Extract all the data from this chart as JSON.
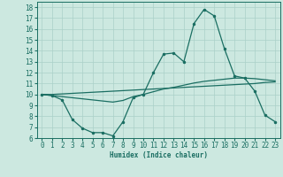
{
  "xlabel": "Humidex (Indice chaleur)",
  "background_color": "#cce8e0",
  "grid_color": "#aad0c8",
  "line_color": "#1a6e62",
  "xlim": [
    -0.5,
    23.5
  ],
  "ylim": [
    6,
    18.5
  ],
  "xticks": [
    0,
    1,
    2,
    3,
    4,
    5,
    6,
    7,
    8,
    9,
    10,
    11,
    12,
    13,
    14,
    15,
    16,
    17,
    18,
    19,
    20,
    21,
    22,
    23
  ],
  "yticks": [
    6,
    7,
    8,
    9,
    10,
    11,
    12,
    13,
    14,
    15,
    16,
    17,
    18
  ],
  "curve1_x": [
    0,
    1,
    2,
    3,
    4,
    5,
    6,
    7,
    8,
    9,
    10,
    11,
    12,
    13,
    14,
    15,
    16,
    17,
    18,
    19,
    20,
    21,
    22,
    23
  ],
  "curve1_y": [
    10.0,
    9.9,
    9.5,
    7.7,
    6.9,
    6.5,
    6.5,
    6.2,
    7.5,
    9.7,
    10.0,
    12.0,
    13.7,
    13.8,
    13.0,
    16.5,
    17.8,
    17.2,
    14.2,
    11.7,
    11.5,
    10.3,
    8.1,
    7.5
  ],
  "curve2_x": [
    0,
    1,
    2,
    3,
    4,
    5,
    6,
    7,
    8,
    9,
    10,
    11,
    12,
    13,
    14,
    15,
    16,
    17,
    18,
    19,
    20,
    21,
    22,
    23
  ],
  "curve2_y": [
    10.0,
    10.0,
    10.05,
    10.1,
    10.15,
    10.2,
    10.25,
    10.3,
    10.35,
    10.4,
    10.45,
    10.5,
    10.55,
    10.6,
    10.65,
    10.7,
    10.75,
    10.8,
    10.85,
    10.9,
    10.95,
    11.0,
    11.1,
    11.15
  ],
  "curve3_x": [
    0,
    1,
    2,
    3,
    4,
    5,
    6,
    7,
    8,
    9,
    10,
    11,
    12,
    13,
    14,
    15,
    16,
    17,
    18,
    19,
    20,
    21,
    22,
    23
  ],
  "curve3_y": [
    10.0,
    9.9,
    9.8,
    9.7,
    9.6,
    9.5,
    9.4,
    9.3,
    9.45,
    9.8,
    10.0,
    10.25,
    10.5,
    10.65,
    10.85,
    11.05,
    11.2,
    11.3,
    11.4,
    11.5,
    11.5,
    11.45,
    11.35,
    11.25
  ]
}
